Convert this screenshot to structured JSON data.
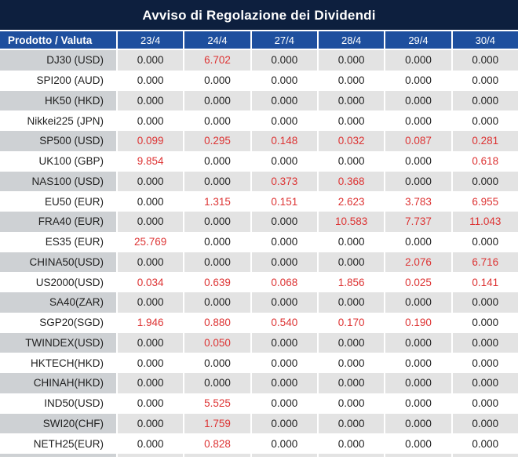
{
  "title": "Avviso di Regolazione dei Dividendi",
  "colors": {
    "title_bg": "#0d1f3e",
    "header_bg": "#1e4f9e",
    "stripe_label_bg": "#ced1d4",
    "stripe_value_bg": "#e3e3e3",
    "highlight_red": "#dd3333",
    "text": "#1f1f1f"
  },
  "table": {
    "columns": [
      "Prodotto / Valuta",
      "23/4",
      "24/4",
      "27/4",
      "28/4",
      "29/4",
      "30/4"
    ],
    "rows": [
      {
        "product": "DJ30 (USD)",
        "values": [
          "0.000",
          "6.702",
          "0.000",
          "0.000",
          "0.000",
          "0.000"
        ]
      },
      {
        "product": "SPI200 (AUD)",
        "values": [
          "0.000",
          "0.000",
          "0.000",
          "0.000",
          "0.000",
          "0.000"
        ]
      },
      {
        "product": "HK50 (HKD)",
        "values": [
          "0.000",
          "0.000",
          "0.000",
          "0.000",
          "0.000",
          "0.000"
        ]
      },
      {
        "product": "Nikkei225 (JPN)",
        "values": [
          "0.000",
          "0.000",
          "0.000",
          "0.000",
          "0.000",
          "0.000"
        ]
      },
      {
        "product": "SP500 (USD)",
        "values": [
          "0.099",
          "0.295",
          "0.148",
          "0.032",
          "0.087",
          "0.281"
        ]
      },
      {
        "product": "UK100 (GBP)",
        "values": [
          "9.854",
          "0.000",
          "0.000",
          "0.000",
          "0.000",
          "0.618"
        ]
      },
      {
        "product": "NAS100 (USD)",
        "values": [
          "0.000",
          "0.000",
          "0.373",
          "0.368",
          "0.000",
          "0.000"
        ]
      },
      {
        "product": "EU50 (EUR)",
        "values": [
          "0.000",
          "1.315",
          "0.151",
          "2.623",
          "3.783",
          "6.955"
        ]
      },
      {
        "product": "FRA40 (EUR)",
        "values": [
          "0.000",
          "0.000",
          "0.000",
          "10.583",
          "7.737",
          "11.043"
        ]
      },
      {
        "product": "ES35 (EUR)",
        "values": [
          "25.769",
          "0.000",
          "0.000",
          "0.000",
          "0.000",
          "0.000"
        ]
      },
      {
        "product": "CHINA50(USD)",
        "values": [
          "0.000",
          "0.000",
          "0.000",
          "0.000",
          "2.076",
          "6.716"
        ]
      },
      {
        "product": "US2000(USD)",
        "values": [
          "0.034",
          "0.639",
          "0.068",
          "1.856",
          "0.025",
          "0.141"
        ]
      },
      {
        "product": "SA40(ZAR)",
        "values": [
          "0.000",
          "0.000",
          "0.000",
          "0.000",
          "0.000",
          "0.000"
        ]
      },
      {
        "product": "SGP20(SGD)",
        "values": [
          "1.946",
          "0.880",
          "0.540",
          "0.170",
          "0.190",
          "0.000"
        ]
      },
      {
        "product": "TWINDEX(USD)",
        "values": [
          "0.000",
          "0.050",
          "0.000",
          "0.000",
          "0.000",
          "0.000"
        ]
      },
      {
        "product": "HKTECH(HKD)",
        "values": [
          "0.000",
          "0.000",
          "0.000",
          "0.000",
          "0.000",
          "0.000"
        ]
      },
      {
        "product": "CHINAH(HKD)",
        "values": [
          "0.000",
          "0.000",
          "0.000",
          "0.000",
          "0.000",
          "0.000"
        ]
      },
      {
        "product": "IND50(USD)",
        "values": [
          "0.000",
          "5.525",
          "0.000",
          "0.000",
          "0.000",
          "0.000"
        ]
      },
      {
        "product": "SWI20(CHF)",
        "values": [
          "0.000",
          "1.759",
          "0.000",
          "0.000",
          "0.000",
          "0.000"
        ]
      },
      {
        "product": "NETH25(EUR)",
        "values": [
          "0.000",
          "0.828",
          "0.000",
          "0.000",
          "0.000",
          "0.000"
        ]
      }
    ]
  }
}
